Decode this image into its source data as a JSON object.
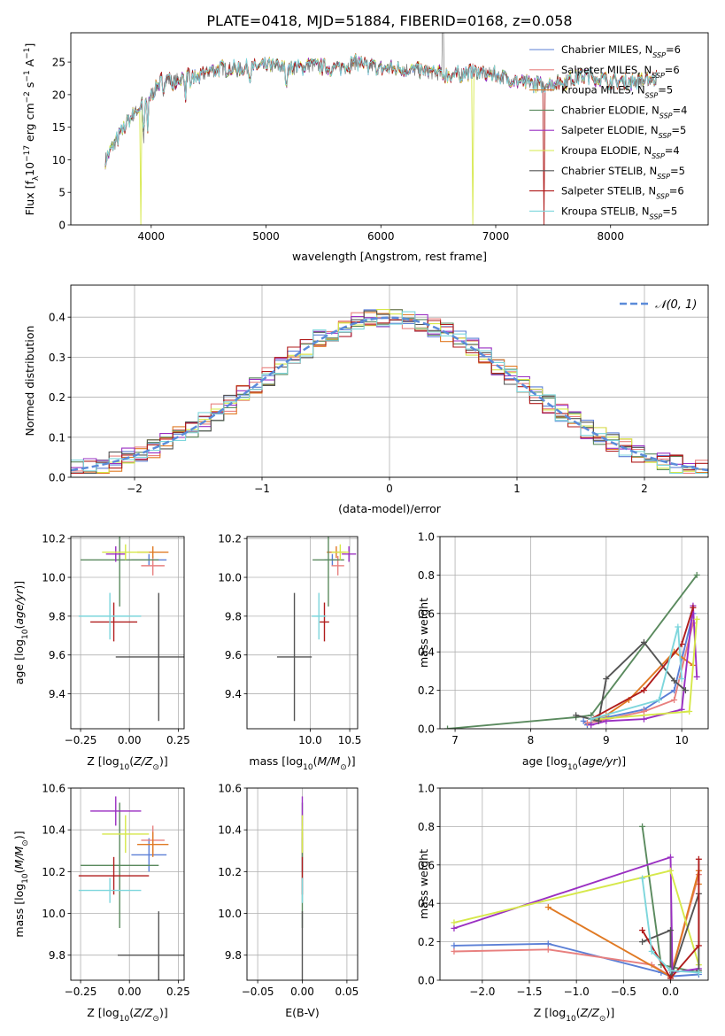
{
  "figure": {
    "title": "PLATE=0418, MJD=51884, FIBERID=0168, z=0.058"
  },
  "colors": {
    "Chabrier MILES": "#5b7fd6",
    "Salpeter MILES": "#e8807f",
    "Kroupa MILES": "#e07a24",
    "Chabrier ELODIE": "#5a8a5e",
    "Salpeter ELODIE": "#9a2fc2",
    "Kroupa ELODIE": "#d6e84a",
    "Chabrier STELIB": "#555555",
    "Salpeter STELIB": "#b01c1c",
    "Kroupa STELIB": "#7dd6dc"
  },
  "chart_data": [
    {
      "id": "spectrum",
      "type": "line",
      "xlabel": "wavelength [Angstrom, rest frame]",
      "ylabel": "Flux [f_λ 10^-17 erg cm^-2 s^-1 A^-1]",
      "xlim": [
        3300,
        8850
      ],
      "ylim": [
        0,
        29.5
      ],
      "xticks": [
        4000,
        5000,
        6000,
        7000,
        8000
      ],
      "yticks": [
        0,
        5,
        10,
        15,
        20,
        25
      ],
      "legend_position": "top-right",
      "legend": [
        {
          "model": "Chabrier MILES",
          "n": "6"
        },
        {
          "model": "Salpeter MILES",
          "n": "6"
        },
        {
          "model": "Kroupa MILES",
          "n": "5"
        },
        {
          "model": "Chabrier ELODIE",
          "n": "4"
        },
        {
          "model": "Salpeter ELODIE",
          "n": "5"
        },
        {
          "model": "Kroupa ELODIE",
          "n": "4"
        },
        {
          "model": "Chabrier STELIB",
          "n": "5"
        },
        {
          "model": "Salpeter STELIB",
          "n": "6"
        },
        {
          "model": "Kroupa STELIB",
          "n": "5"
        }
      ],
      "continuum": {
        "x": [
          3600,
          3700,
          3800,
          3900,
          4000,
          4100,
          4200,
          4300,
          4400,
          4500,
          4600,
          4800,
          5000,
          5200,
          5400,
          5600,
          5800,
          6000,
          6200,
          6400,
          6600,
          6800,
          7000,
          7200,
          7400,
          7600,
          7800,
          8000,
          8200,
          8400
        ],
        "y": [
          10,
          13,
          16,
          18,
          20,
          22.5,
          22,
          23,
          22.5,
          23.5,
          24,
          24,
          24.5,
          24,
          24.5,
          24,
          25,
          24,
          24,
          23.5,
          23,
          23.5,
          23,
          22,
          21.5,
          22,
          23,
          22,
          22,
          22.5
        ]
      },
      "anomalies": [
        {
          "series": "Kroupa ELODIE",
          "x": 3910,
          "y": 0
        },
        {
          "series": "Chabrier STELIB",
          "x": 6540,
          "y": 29.5
        },
        {
          "series": "Kroupa ELODIE",
          "x": 6800,
          "y": 0
        },
        {
          "series": "Salpeter STELIB",
          "x": 7420,
          "y": 0
        }
      ]
    },
    {
      "id": "residuals",
      "type": "histogram",
      "xlabel": "(data-model)/error",
      "ylabel": "Normed distribution",
      "xlim": [
        -2.5,
        2.5
      ],
      "ylim": [
        0,
        0.48
      ],
      "xticks": [
        -2,
        -1,
        0,
        1,
        2
      ],
      "yticks": [
        0.0,
        0.1,
        0.2,
        0.3,
        0.4
      ],
      "legend_position": "top-right",
      "reference_label": "𝒩(0, 1)",
      "reference_color": "#5b8bd9",
      "bin_width": 0.1,
      "bin_start": -2.5
    },
    {
      "id": "age-vs-Z",
      "type": "scatter",
      "xlabel": "Z [log10(Z/Z_sun)]",
      "ylabel": "age [log10(age/yr)]",
      "xlim": [
        -0.3,
        0.28
      ],
      "ylim": [
        9.22,
        10.21
      ],
      "xticks": [
        -0.25,
        0.0,
        0.25
      ],
      "yticks": [
        9.4,
        9.6,
        9.8,
        10.0,
        10.2
      ],
      "points": [
        {
          "series": "Chabrier MILES",
          "x": 0.1,
          "xerr": 0.09,
          "y": 10.09,
          "yerr": 0.03
        },
        {
          "series": "Salpeter MILES",
          "x": 0.12,
          "xerr": 0.06,
          "y": 10.06,
          "yerr": 0.05
        },
        {
          "series": "Kroupa MILES",
          "x": 0.12,
          "xerr": 0.08,
          "y": 10.13,
          "yerr": 0.03
        },
        {
          "series": "Chabrier ELODIE",
          "x": -0.05,
          "xerr": 0.2,
          "y": 10.09,
          "yerr": 0.24
        },
        {
          "series": "Salpeter ELODIE",
          "x": -0.07,
          "xerr": 0.05,
          "y": 10.12,
          "yerr": 0.04
        },
        {
          "series": "Kroupa ELODIE",
          "x": -0.02,
          "xerr": 0.12,
          "y": 10.13,
          "yerr": 0.04
        },
        {
          "series": "Chabrier STELIB",
          "x": 0.15,
          "xerr": 0.22,
          "y": 9.59,
          "yerr": 0.33
        },
        {
          "series": "Salpeter STELIB",
          "x": -0.08,
          "xerr": 0.12,
          "y": 9.77,
          "yerr": 0.1
        },
        {
          "series": "Kroupa STELIB",
          "x": -0.1,
          "xerr": 0.16,
          "y": 9.8,
          "yerr": 0.12
        }
      ]
    },
    {
      "id": "age-vs-mass",
      "type": "scatter",
      "xlabel": "mass [log10(M/M_sun)]",
      "ylabel": "",
      "xlim": [
        9.2,
        10.6
      ],
      "ylim": [
        9.22,
        10.21
      ],
      "xticks": [
        10.0,
        10.5
      ],
      "yticks": [
        9.4,
        9.6,
        9.8,
        10.0,
        10.2
      ],
      "points": [
        {
          "series": "Chabrier MILES",
          "x": 10.28,
          "xerr": 0.1,
          "y": 10.09,
          "yerr": 0.03
        },
        {
          "series": "Salpeter MILES",
          "x": 10.35,
          "xerr": 0.08,
          "y": 10.06,
          "yerr": 0.05
        },
        {
          "series": "Kroupa MILES",
          "x": 10.33,
          "xerr": 0.12,
          "y": 10.13,
          "yerr": 0.03
        },
        {
          "series": "Chabrier ELODIE",
          "x": 10.23,
          "xerr": 0.2,
          "y": 10.09,
          "yerr": 0.24
        },
        {
          "series": "Salpeter ELODIE",
          "x": 10.49,
          "xerr": 0.09,
          "y": 10.12,
          "yerr": 0.04
        },
        {
          "series": "Kroupa ELODIE",
          "x": 10.38,
          "xerr": 0.11,
          "y": 10.13,
          "yerr": 0.04
        },
        {
          "series": "Chabrier STELIB",
          "x": 9.8,
          "xerr": 0.22,
          "y": 9.59,
          "yerr": 0.33
        },
        {
          "series": "Salpeter STELIB",
          "x": 10.18,
          "xerr": 0.06,
          "y": 9.77,
          "yerr": 0.1
        },
        {
          "series": "Kroupa STELIB",
          "x": 10.11,
          "xerr": 0.09,
          "y": 9.8,
          "yerr": 0.12
        }
      ]
    },
    {
      "id": "mass-vs-Z",
      "type": "scatter",
      "xlabel": "Z [log10(Z/Z_sun)]",
      "ylabel": "mass [log10(M/M_sun)]",
      "xlim": [
        -0.3,
        0.28
      ],
      "ylim": [
        9.68,
        10.6
      ],
      "xticks": [
        -0.25,
        0.0,
        0.25
      ],
      "yticks": [
        9.8,
        10.0,
        10.2,
        10.4,
        10.6
      ],
      "points": [
        {
          "series": "Chabrier MILES",
          "x": 0.1,
          "xerr": 0.09,
          "y": 10.28,
          "yerr": 0.08
        },
        {
          "series": "Salpeter MILES",
          "x": 0.12,
          "xerr": 0.06,
          "y": 10.35,
          "yerr": 0.07
        },
        {
          "series": "Kroupa MILES",
          "x": 0.12,
          "xerr": 0.08,
          "y": 10.33,
          "yerr": 0.06
        },
        {
          "series": "Chabrier ELODIE",
          "x": -0.05,
          "xerr": 0.2,
          "y": 10.23,
          "yerr": 0.3
        },
        {
          "series": "Salpeter ELODIE",
          "x": -0.07,
          "xerr": 0.13,
          "y": 10.49,
          "yerr": 0.07
        },
        {
          "series": "Kroupa ELODIE",
          "x": -0.02,
          "xerr": 0.12,
          "y": 10.38,
          "yerr": 0.09
        },
        {
          "series": "Chabrier STELIB",
          "x": 0.15,
          "xerr": 0.21,
          "y": 9.8,
          "yerr": 0.21
        },
        {
          "series": "Salpeter STELIB",
          "x": -0.08,
          "xerr": 0.18,
          "y": 10.18,
          "yerr": 0.09
        },
        {
          "series": "Kroupa STELIB",
          "x": -0.1,
          "xerr": 0.16,
          "y": 10.11,
          "yerr": 0.06
        }
      ]
    },
    {
      "id": "mass-vs-EBV",
      "type": "scatter",
      "xlabel": "E(B-V)",
      "ylabel": "",
      "xlim": [
        -0.062,
        0.062
      ],
      "ylim": [
        9.68,
        10.6
      ],
      "xticks": [
        -0.05,
        0.0,
        0.05
      ],
      "xtick_labels": [
        "−0.05",
        "0.00",
        "0.05"
      ],
      "yticks": [
        9.8,
        10.0,
        10.2,
        10.4,
        10.6
      ],
      "points": [
        {
          "series": "Chabrier MILES",
          "x": 0.0,
          "xerr": 0.0,
          "y": 10.28,
          "yerr": 0.08
        },
        {
          "series": "Salpeter MILES",
          "x": 0.0,
          "xerr": 0.0,
          "y": 10.35,
          "yerr": 0.07
        },
        {
          "series": "Kroupa MILES",
          "x": 0.0,
          "xerr": 0.0,
          "y": 10.33,
          "yerr": 0.06
        },
        {
          "series": "Chabrier ELODIE",
          "x": 0.0,
          "xerr": 0.0,
          "y": 10.23,
          "yerr": 0.3
        },
        {
          "series": "Salpeter ELODIE",
          "x": 0.0,
          "xerr": 0.0,
          "y": 10.49,
          "yerr": 0.07
        },
        {
          "series": "Kroupa ELODIE",
          "x": 0.0,
          "xerr": 0.0,
          "y": 10.38,
          "yerr": 0.09
        },
        {
          "series": "Chabrier STELIB",
          "x": 0.0,
          "xerr": 0.0,
          "y": 9.8,
          "yerr": 0.21
        },
        {
          "series": "Salpeter STELIB",
          "x": 0.0,
          "xerr": 0.0,
          "y": 10.18,
          "yerr": 0.09
        },
        {
          "series": "Kroupa STELIB",
          "x": 0.0,
          "xerr": 0.0,
          "y": 10.11,
          "yerr": 0.06
        }
      ]
    },
    {
      "id": "weight-vs-age",
      "type": "line",
      "xlabel": "age [log10(age/yr)]",
      "ylabel": "mass weight",
      "xlim": [
        6.8,
        10.35
      ],
      "ylim": [
        0,
        1
      ],
      "xticks": [
        7,
        8,
        9,
        10
      ],
      "yticks": [
        0.0,
        0.2,
        0.4,
        0.6,
        0.8,
        1.0
      ],
      "series": [
        {
          "name": "Chabrier MILES",
          "x": [
            8.7,
            8.75,
            8.9,
            9.5,
            9.9,
            10.15
          ],
          "y": [
            0.04,
            0.02,
            0.05,
            0.1,
            0.2,
            0.6
          ]
        },
        {
          "name": "Salpeter MILES",
          "x": [
            8.75,
            8.9,
            9.5,
            9.9,
            10.15
          ],
          "y": [
            0.03,
            0.04,
            0.09,
            0.15,
            0.55
          ]
        },
        {
          "name": "Kroupa MILES",
          "x": [
            8.8,
            9.0,
            9.3,
            9.9,
            10.15
          ],
          "y": [
            0.05,
            0.07,
            0.15,
            0.4,
            0.33
          ]
        },
        {
          "name": "Chabrier ELODIE",
          "x": [
            6.9,
            8.6,
            8.8,
            10.2
          ],
          "y": [
            0.0,
            0.06,
            0.07,
            0.8
          ]
        },
        {
          "name": "Salpeter ELODIE",
          "x": [
            8.8,
            9.0,
            9.5,
            10.0,
            10.15,
            10.2
          ],
          "y": [
            0.02,
            0.04,
            0.05,
            0.1,
            0.64,
            0.27
          ]
        },
        {
          "name": "Kroupa ELODIE",
          "x": [
            8.9,
            10.1,
            10.2
          ],
          "y": [
            0.05,
            0.09,
            0.57
          ]
        },
        {
          "name": "Chabrier STELIB",
          "x": [
            8.6,
            8.9,
            9.0,
            9.5,
            9.9,
            10.05
          ],
          "y": [
            0.07,
            0.04,
            0.26,
            0.45,
            0.25,
            0.2
          ]
        },
        {
          "name": "Salpeter STELIB",
          "x": [
            8.8,
            9.5,
            10.0,
            10.15
          ],
          "y": [
            0.05,
            0.2,
            0.44,
            0.63
          ]
        },
        {
          "name": "Kroupa STELIB",
          "x": [
            8.8,
            9.7,
            9.95,
            10.0
          ],
          "y": [
            0.05,
            0.15,
            0.53,
            0.26
          ]
        }
      ]
    },
    {
      "id": "weight-vs-Z",
      "type": "line",
      "xlabel": "Z [log10(Z/Z_sun)]",
      "ylabel": "mass weight",
      "xlim": [
        -2.45,
        0.4
      ],
      "ylim": [
        0,
        1
      ],
      "xticks": [
        -2.0,
        -1.5,
        -1.0,
        -0.5,
        0.0
      ],
      "yticks": [
        0.0,
        0.2,
        0.4,
        0.6,
        0.8,
        1.0
      ],
      "series": [
        {
          "name": "Chabrier MILES",
          "x": [
            -2.3,
            -1.3,
            -0.1,
            0.0,
            0.3
          ],
          "y": [
            0.18,
            0.19,
            0.04,
            0.02,
            0.03
          ]
        },
        {
          "name": "Salpeter MILES",
          "x": [
            -2.3,
            -1.3,
            -0.2,
            0.0,
            0.3
          ],
          "y": [
            0.15,
            0.16,
            0.08,
            0.02,
            0.55
          ]
        },
        {
          "name": "Kroupa MILES",
          "x": [
            -1.3,
            0.0,
            0.3,
            0.3
          ],
          "y": [
            0.38,
            0.02,
            0.57,
            0.5
          ]
        },
        {
          "name": "Chabrier ELODIE",
          "x": [
            -0.3,
            -0.1,
            0.3
          ],
          "y": [
            0.8,
            0.08,
            0.04
          ]
        },
        {
          "name": "Salpeter ELODIE",
          "x": [
            -2.3,
            0.0,
            0.02,
            0.3
          ],
          "y": [
            0.27,
            0.64,
            0.04,
            0.06
          ]
        },
        {
          "name": "Kroupa ELODIE",
          "x": [
            -2.3,
            0.0,
            0.3
          ],
          "y": [
            0.3,
            0.57,
            0.08
          ]
        },
        {
          "name": "Chabrier STELIB",
          "x": [
            -0.3,
            0.0,
            0.0,
            0.3,
            0.3
          ],
          "y": [
            0.2,
            0.26,
            0.01,
            0.45,
            0.05
          ]
        },
        {
          "name": "Salpeter STELIB",
          "x": [
            -0.3,
            0.0,
            0.3,
            0.3
          ],
          "y": [
            0.26,
            0.01,
            0.18,
            0.63
          ]
        },
        {
          "name": "Kroupa STELIB",
          "x": [
            -0.3,
            -0.2,
            0.0,
            0.3
          ],
          "y": [
            0.53,
            0.15,
            0.05,
            0.04
          ]
        }
      ]
    }
  ]
}
